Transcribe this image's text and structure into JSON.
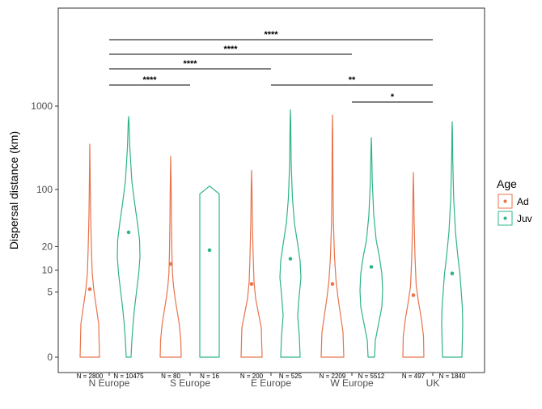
{
  "chart_data": {
    "type": "violin",
    "ylabel": "Dispersal distance (km)",
    "xlabel": "",
    "y_scale": "log(x+1)",
    "y_ticks": [
      0,
      5,
      10,
      20,
      100,
      1000
    ],
    "categories": [
      "N Europe",
      "S Europe",
      "E Europe",
      "W Europe",
      "UK"
    ],
    "groups": [
      {
        "region": "N Europe",
        "age": "Ad",
        "n_label": "N = 2800",
        "median": 5.5,
        "max": 350
      },
      {
        "region": "N Europe",
        "age": "Juv",
        "n_label": "N = 10475",
        "median": 30,
        "max": 750
      },
      {
        "region": "S Europe",
        "age": "Ad",
        "n_label": "N = 80",
        "median": 12,
        "max": 250
      },
      {
        "region": "S Europe",
        "age": "Juv",
        "n_label": "N = 16",
        "median": 18,
        "max": 110
      },
      {
        "region": "E Europe",
        "age": "Ad",
        "n_label": "N = 200",
        "median": 6.5,
        "max": 170
      },
      {
        "region": "E Europe",
        "age": "Juv",
        "n_label": "N = 525",
        "median": 14,
        "max": 900
      },
      {
        "region": "W Europe",
        "age": "Ad",
        "n_label": "N = 2209",
        "median": 6.5,
        "max": 780
      },
      {
        "region": "W Europe",
        "age": "Juv",
        "n_label": "N = 5512",
        "median": 11,
        "max": 420
      },
      {
        "region": "UK",
        "age": "Ad",
        "n_label": "N = 497",
        "median": 4.5,
        "max": 160
      },
      {
        "region": "UK",
        "age": "Juv",
        "n_label": "N = 1840",
        "median": 9,
        "max": 650
      }
    ],
    "significance": [
      {
        "from": "N Europe",
        "to": "UK",
        "label": "****"
      },
      {
        "from": "N Europe",
        "to": "W Europe",
        "label": "****"
      },
      {
        "from": "N Europe",
        "to": "E Europe",
        "label": "****"
      },
      {
        "from": "N Europe",
        "to": "S Europe",
        "label": "****"
      },
      {
        "from": "E Europe",
        "to": "UK",
        "label": "**"
      },
      {
        "from": "W Europe",
        "to": "UK",
        "label": "*"
      }
    ],
    "legend": {
      "title": "Age",
      "position": "right",
      "entries": [
        {
          "label": "Ad",
          "color": "#e8734a"
        },
        {
          "label": "Juv",
          "color": "#2fb38a"
        }
      ]
    },
    "grid": false
  }
}
